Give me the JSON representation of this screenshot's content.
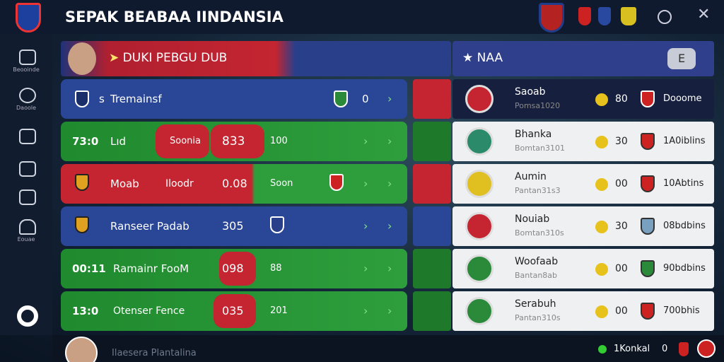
{
  "header": {
    "title": "SEPAK BEABAA IINDANSIA"
  },
  "sidebar": {
    "items": [
      "Beooinde",
      "Daoole",
      "Eouae"
    ]
  },
  "left_panel": {
    "banner": "DUKI PEBGU DUB",
    "rows": [
      {
        "cells": [
          "s",
          "Tremainsf",
          "0"
        ]
      },
      {
        "cells": [
          "73:0",
          "Lıd",
          "Soonia",
          "833",
          "100"
        ]
      },
      {
        "cells": [
          "Moab",
          "Iloodr",
          "0.08",
          "Soon"
        ]
      },
      {
        "cells": [
          "Ranseer Padab",
          "305"
        ]
      },
      {
        "cells": [
          "00:11",
          "Ramainr FooM",
          "098",
          "88"
        ]
      },
      {
        "cells": [
          "13:0",
          "Otenser Fence",
          "035",
          "201"
        ]
      }
    ]
  },
  "right_panel": {
    "banner": "NAA",
    "button": "E",
    "rows": [
      {
        "name": "Saoab",
        "sub": "Pomsa1020",
        "score": "80",
        "info": "Dooome"
      },
      {
        "name": "Bhanka",
        "sub": "Bomtan3101",
        "score": "30",
        "info": "1A0iblins"
      },
      {
        "name": "Aumin",
        "sub": "Pantan31s3",
        "score": "00",
        "info": "10Abtins"
      },
      {
        "name": "Nouiab",
        "sub": "Bomtan310s",
        "score": "30",
        "info": "08bdbins"
      },
      {
        "name": "Woofaab",
        "sub": "Bantan8ab",
        "score": "00",
        "info": "90bdbins"
      },
      {
        "name": "Serabuh",
        "sub": "Pantan310s",
        "score": "00",
        "info": "700bhis"
      }
    ]
  },
  "footer": {
    "player": "Ilaesera Plantalina",
    "label": "1Konkal",
    "count": "0"
  }
}
